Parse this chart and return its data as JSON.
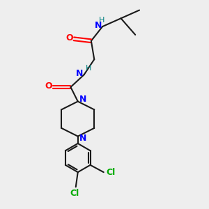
{
  "bg_color": "#eeeeee",
  "bond_color": "#1a1a1a",
  "N_color": "#0000ff",
  "O_color": "#ff0000",
  "Cl_color": "#00aa00",
  "H_color": "#008080",
  "line_width": 1.5,
  "figsize": [
    3.0,
    3.0
  ],
  "dpi": 100,
  "xlim": [
    0,
    10
  ],
  "ylim": [
    0,
    10
  ]
}
